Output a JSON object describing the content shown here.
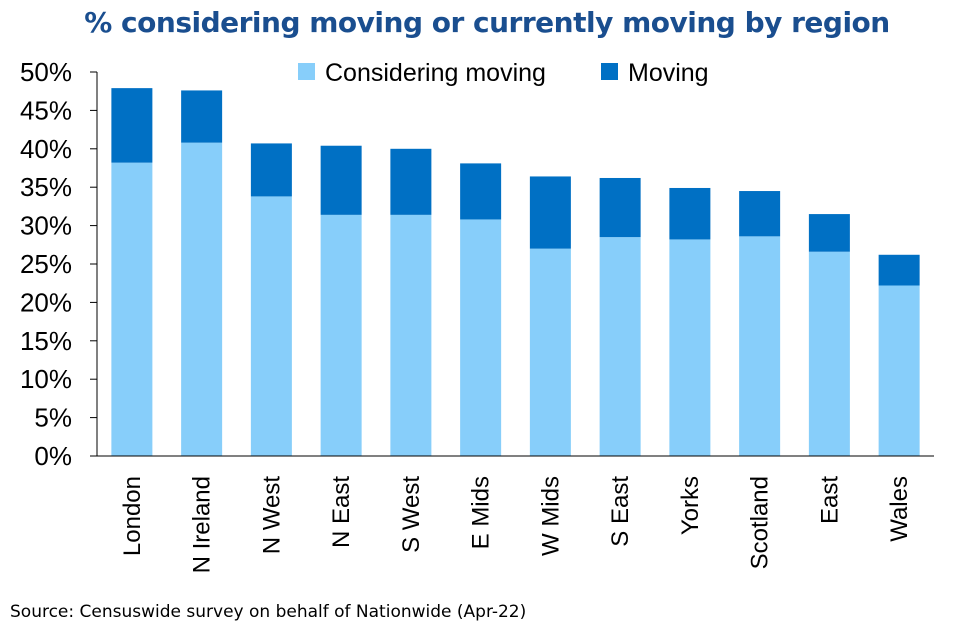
{
  "chart_data": {
    "type": "bar",
    "stacked": true,
    "title": "% considering moving or currently moving by region",
    "categories": [
      "London",
      "N Ireland",
      "N West",
      "N East",
      "S West",
      "E Mids",
      "W Mids",
      "S East",
      "Yorks",
      "Scotland",
      "East",
      "Wales"
    ],
    "series": [
      {
        "name": "Considering moving",
        "color": "#87cefa",
        "values": [
          38.2,
          40.8,
          33.8,
          31.4,
          31.4,
          30.8,
          27.0,
          28.5,
          28.2,
          28.6,
          26.6,
          22.2
        ]
      },
      {
        "name": "Moving",
        "color": "#0070c4",
        "values": [
          9.7,
          6.8,
          6.9,
          9.0,
          8.6,
          7.3,
          9.4,
          7.7,
          6.7,
          5.9,
          4.9,
          4.0
        ]
      }
    ],
    "ylim": [
      0,
      50
    ],
    "yticks": [
      "0%",
      "5%",
      "10%",
      "15%",
      "20%",
      "25%",
      "30%",
      "35%",
      "40%",
      "45%",
      "50%"
    ],
    "legend_position": "top-center",
    "grid": false
  },
  "source": "Source: Censuswide survey on behalf of Nationwide (Apr-22)"
}
